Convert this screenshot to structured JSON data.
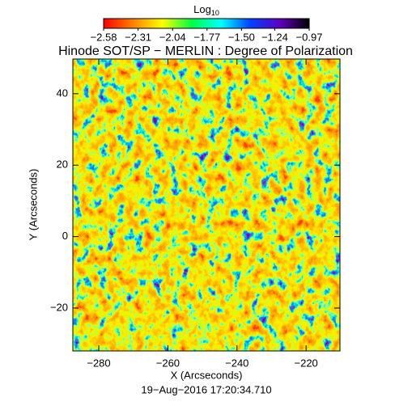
{
  "chart_data": {
    "type": "heatmap",
    "title": "Hinode SOT/SP − MERLIN : Degree of Polarization",
    "xlabel": "X (Arcseconds)",
    "ylabel": "Y (Arcseconds)",
    "footer": "19−Aug−2016 17:20:34.710",
    "xlim": [
      -287.5,
      -210.2
    ],
    "ylim": [
      -32.0,
      49.7
    ],
    "xticks": [
      {
        "value": -280,
        "label": "−280"
      },
      {
        "value": -260,
        "label": "−260"
      },
      {
        "value": -240,
        "label": "−240"
      },
      {
        "value": -220,
        "label": "−220"
      }
    ],
    "yticks": [
      {
        "value": -20,
        "label": "−20"
      },
      0,
      20,
      40
    ],
    "colorbar": {
      "label": "Log",
      "label_sub": "10",
      "lim": [
        -2.58,
        -0.97
      ],
      "ticks": [
        {
          "value": -2.58,
          "label": "−2.58"
        },
        {
          "value": -2.31,
          "label": "−2.31"
        },
        {
          "value": -2.04,
          "label": "−2.04"
        },
        {
          "value": -1.77,
          "label": "−1.77"
        },
        {
          "value": -1.5,
          "label": "−1.50"
        },
        {
          "value": -1.24,
          "label": "−1.24"
        },
        {
          "value": -0.97,
          "label": "−0.97"
        }
      ],
      "colors": [
        "#ff0000",
        "#ff8000",
        "#ffff00",
        "#00ff40",
        "#00ffff",
        "#0040ff",
        "#6000c0",
        "#000000"
      ]
    }
  }
}
